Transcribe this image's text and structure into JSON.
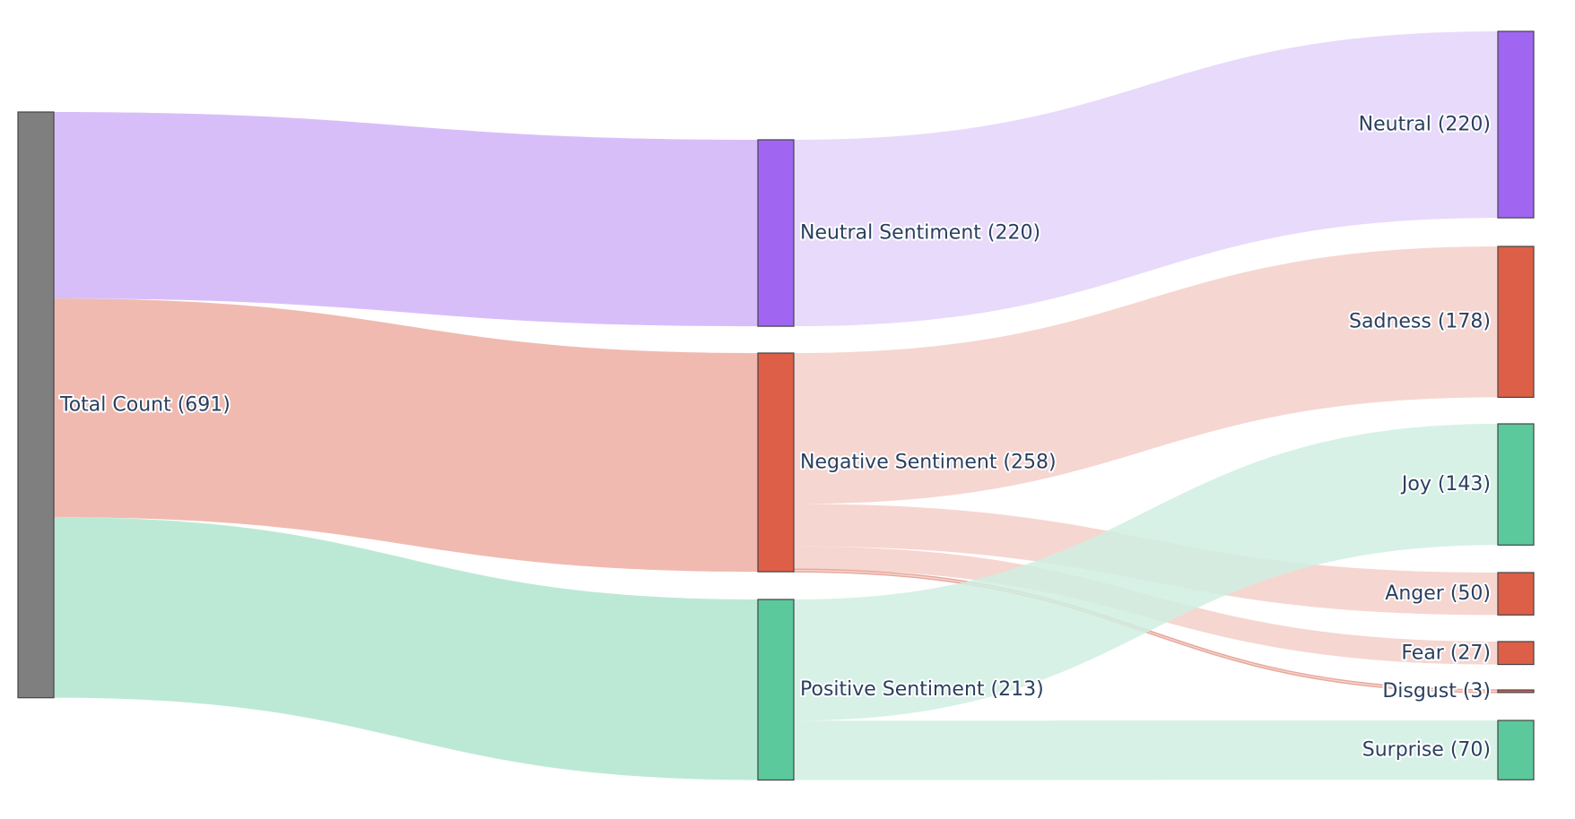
{
  "chart_data": {
    "type": "sankey",
    "nodes": [
      {
        "id": "total",
        "label": "Total Count (691)",
        "color": "#7f7f7f",
        "column": 0
      },
      {
        "id": "neutral_s",
        "label": "Neutral Sentiment (220)",
        "color": "#a066f2",
        "column": 1
      },
      {
        "id": "negative_s",
        "label": "Negative Sentiment (258)",
        "color": "#de5f48",
        "column": 1
      },
      {
        "id": "positive_s",
        "label": "Positive Sentiment (213)",
        "color": "#5bc99b",
        "column": 1
      },
      {
        "id": "neutral",
        "label": "Neutral (220)",
        "color": "#a066f2",
        "column": 2
      },
      {
        "id": "sadness",
        "label": "Sadness (178)",
        "color": "#de5f48",
        "column": 2
      },
      {
        "id": "joy",
        "label": "Joy (143)",
        "color": "#5bc99b",
        "column": 2
      },
      {
        "id": "anger",
        "label": "Anger (50)",
        "color": "#de5f48",
        "column": 2
      },
      {
        "id": "fear",
        "label": "Fear (27)",
        "color": "#de5f48",
        "column": 2
      },
      {
        "id": "disgust",
        "label": "Disgust (3)",
        "color": "#de5f48",
        "column": 2
      },
      {
        "id": "surprise",
        "label": "Surprise (70)",
        "color": "#5bc99b",
        "column": 2
      }
    ],
    "links": [
      {
        "source": "total",
        "target": "neutral_s",
        "value": 220,
        "color": "#d1b3f8"
      },
      {
        "source": "total",
        "target": "negative_s",
        "value": 258,
        "color": "#edaea3"
      },
      {
        "source": "total",
        "target": "positive_s",
        "value": 213,
        "color": "#b0e5ce"
      },
      {
        "source": "neutral_s",
        "target": "neutral",
        "value": 220,
        "color": "#e4d3fa"
      },
      {
        "source": "negative_s",
        "target": "sadness",
        "value": 178,
        "color": "#f4cfc8"
      },
      {
        "source": "negative_s",
        "target": "anger",
        "value": 50,
        "color": "#f4cfc8"
      },
      {
        "source": "negative_s",
        "target": "fear",
        "value": 27,
        "color": "#f4cfc8"
      },
      {
        "source": "negative_s",
        "target": "disgust",
        "value": 3,
        "color": "#f4cfc8"
      },
      {
        "source": "positive_s",
        "target": "joy",
        "value": 143,
        "color": "#d0eee2"
      },
      {
        "source": "positive_s",
        "target": "surprise",
        "value": 70,
        "color": "#d0eee2"
      }
    ]
  }
}
